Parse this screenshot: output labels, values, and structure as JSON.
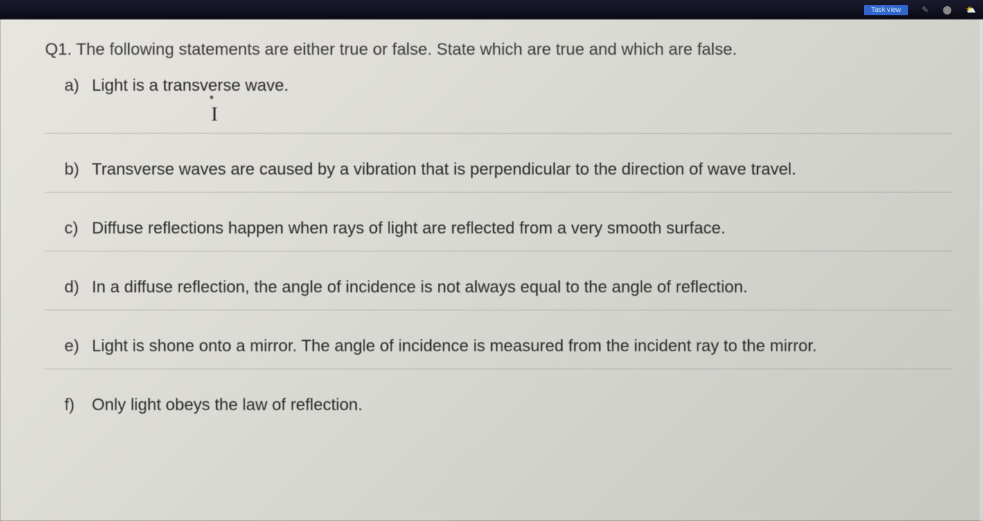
{
  "titlebar": {
    "button_text": "Task view"
  },
  "question": {
    "number": "Q1.",
    "prompt": "The following statements are either true or false. State which are true and which are false."
  },
  "items": [
    {
      "label": "a)",
      "text": "Light is a transverse wave."
    },
    {
      "label": "b)",
      "text": "Transverse waves are caused by a vibration that is perpendicular to the direction of wave travel."
    },
    {
      "label": "c)",
      "text": "Diffuse reflections happen when rays of light are reflected from a very smooth surface."
    },
    {
      "label": "d)",
      "text": "In a diffuse reflection, the angle of incidence is not always equal to the angle of reflection."
    },
    {
      "label": "e)",
      "text": "Light is shone onto a mirror. The angle of incidence is measured from the incident ray to the mirror."
    },
    {
      "label": "f)",
      "text": "Only light obeys the law of reflection."
    }
  ],
  "colors": {
    "page_bg_start": "#e8e6e0",
    "page_bg_end": "#c8c8c2",
    "text": "#2a2a2a",
    "line": "#888888"
  },
  "typography": {
    "body_fontsize_pt": 18,
    "font_family": "Arial"
  }
}
